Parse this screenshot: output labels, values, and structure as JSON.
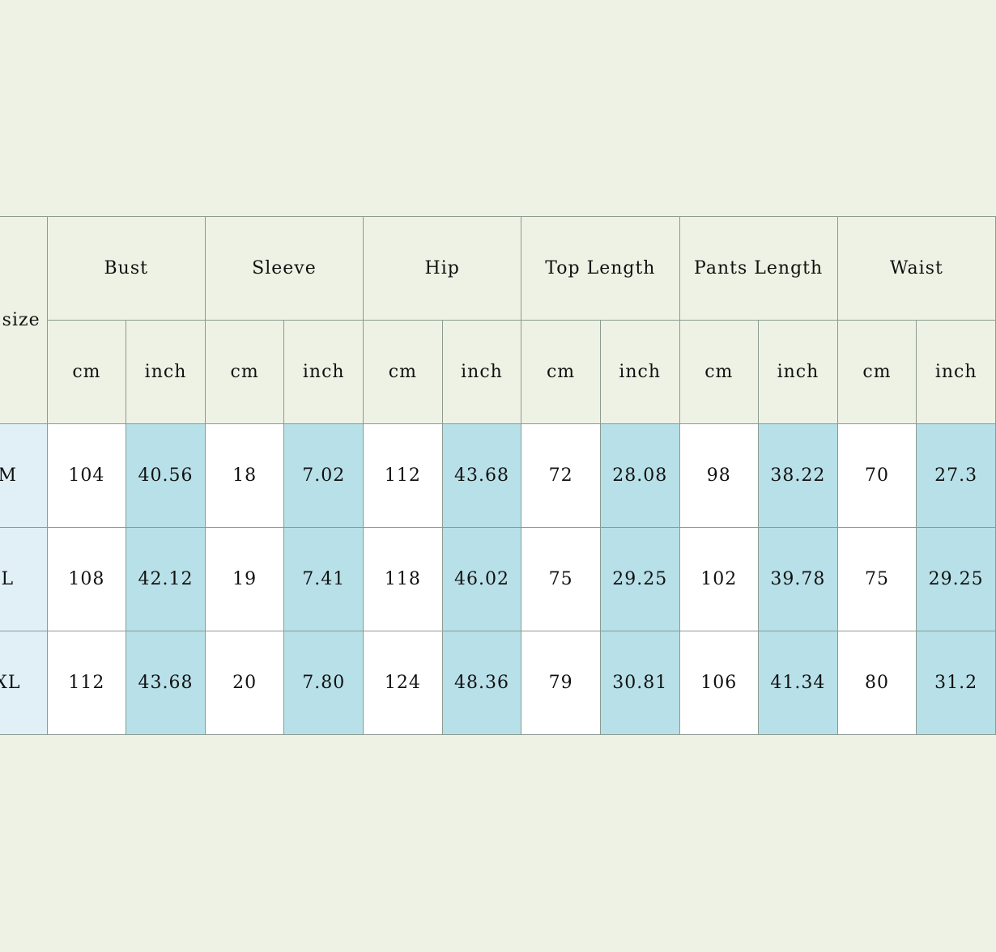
{
  "table": {
    "size_header": "size",
    "groups": [
      "Bust",
      "Sleeve",
      "Hip",
      "Top Length",
      "Pants Length",
      "Waist"
    ],
    "units": {
      "cm": "cm",
      "inch": "inch"
    },
    "rows": [
      {
        "size": "M",
        "values": [
          "104",
          "40.56",
          "18",
          "7.02",
          "112",
          "43.68",
          "72",
          "28.08",
          "98",
          "38.22",
          "70",
          "27.3"
        ]
      },
      {
        "size": "L",
        "values": [
          "108",
          "42.12",
          "19",
          "7.41",
          "118",
          "46.02",
          "75",
          "29.25",
          "102",
          "39.78",
          "75",
          "29.25"
        ]
      },
      {
        "size": "XL",
        "values": [
          "112",
          "43.68",
          "20",
          "7.80",
          "124",
          "48.36",
          "79",
          "30.81",
          "106",
          "41.34",
          "80",
          "31.2"
        ]
      }
    ]
  },
  "colors": {
    "background": "#eef2e4",
    "size_column": "#e0f0f6",
    "cm_column": "#ffffff",
    "inch_column": "#b8e0e8",
    "border": "#8c9a90"
  }
}
